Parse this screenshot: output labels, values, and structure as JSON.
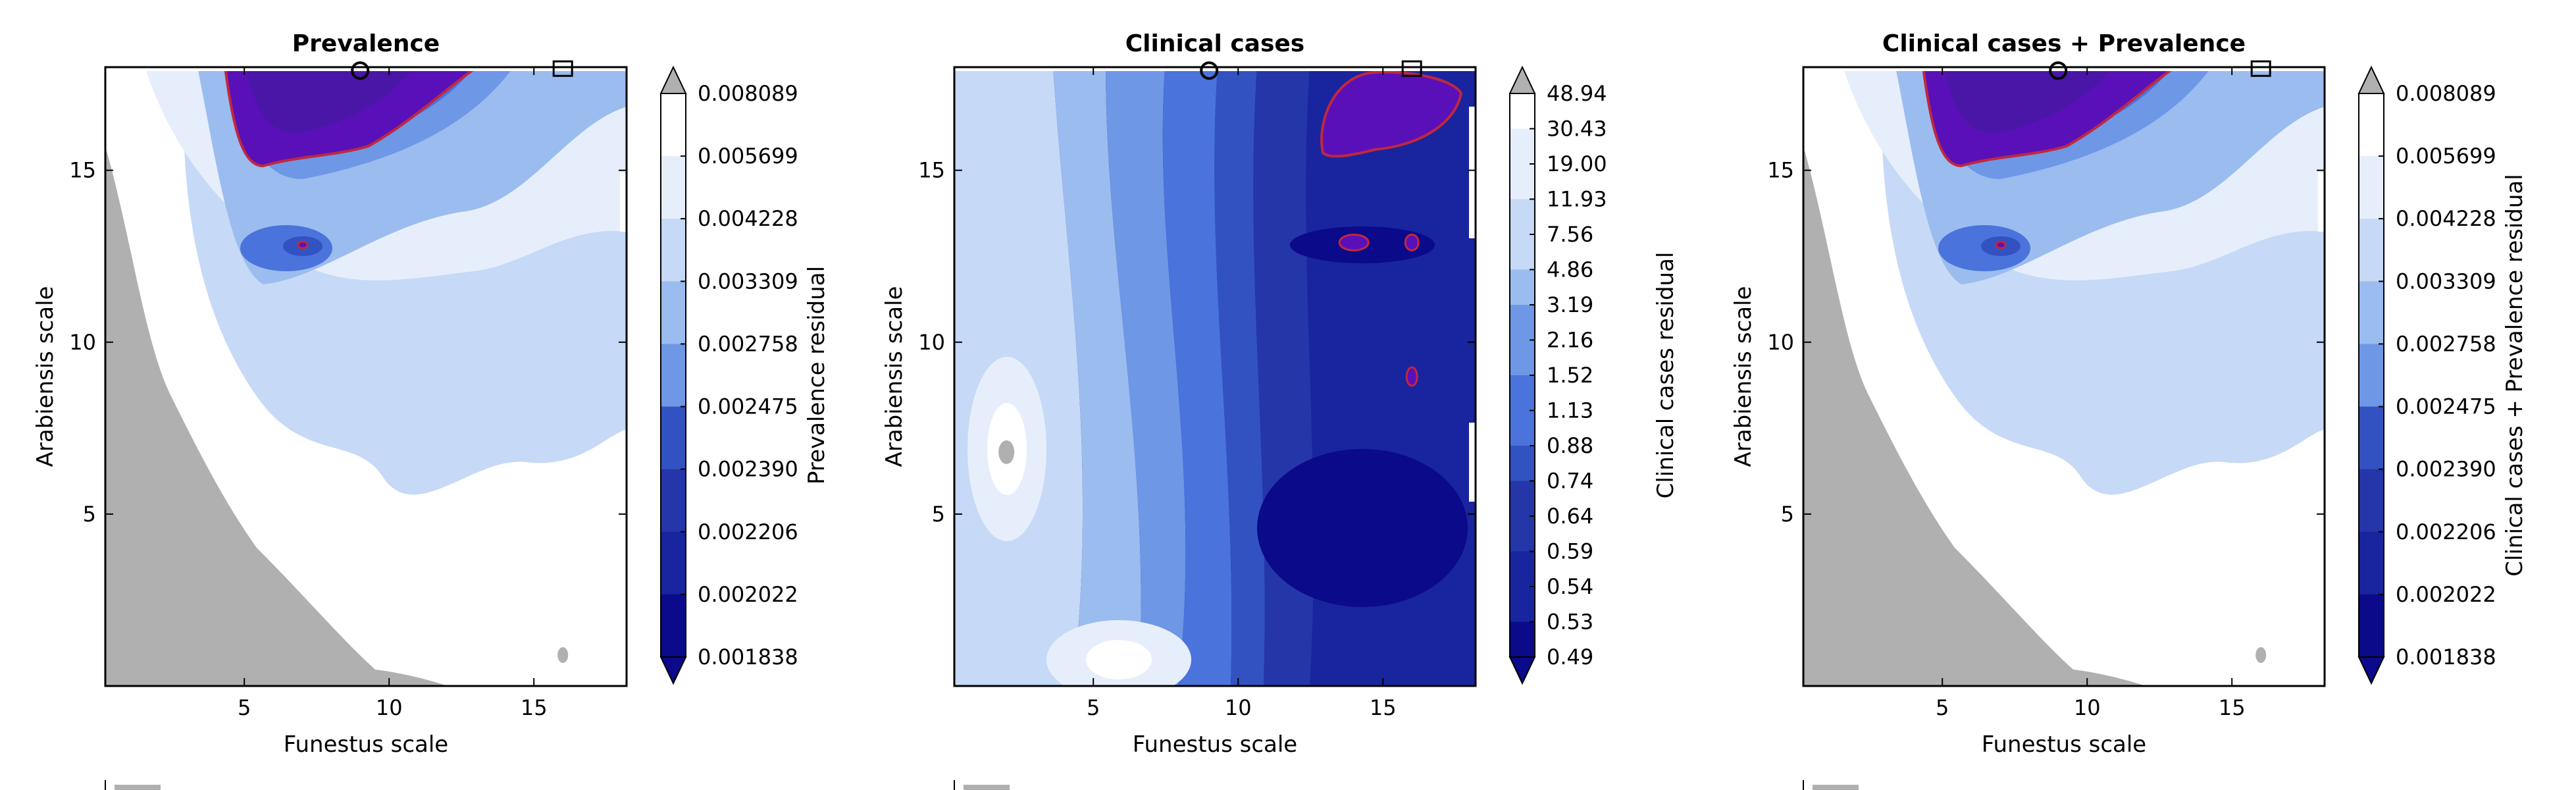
{
  "colors": {
    "background": "#ffffff",
    "frame": "#000000",
    "mask_gray": "#b0b0b0",
    "highlight_purple": "#5a10b8",
    "contour_red": "#c0273f",
    "level_colors": [
      "#0a0a8a",
      "#19249f",
      "#2436a8",
      "#3352c2",
      "#4a73db",
      "#6e97e6",
      "#9bbcef",
      "#c6d9f6",
      "#e6eefc",
      "#ffffff",
      "#b0b0b0"
    ]
  },
  "panels": [
    {
      "title": "Prevalence",
      "xlabel": "Funestus scale",
      "ylabel": "Arabiensis scale",
      "colorbar_label": "Prevalence residual",
      "colorbar_ticks": [
        "0.008089",
        "0.005699",
        "0.004228",
        "0.003309",
        "0.002758",
        "0.002475",
        "0.002390",
        "0.002206",
        "0.002022",
        "0.001838"
      ],
      "legend_text": ""
    },
    {
      "title": "Clinical cases",
      "xlabel": "Funestus scale",
      "ylabel": "Arabiensis scale",
      "colorbar_label": "Clinical cases residual",
      "colorbar_ticks": [
        "48.94",
        "30.43",
        "19.00",
        "11.93",
        "7.56",
        "4.86",
        "3.19",
        "2.16",
        "1.52",
        "1.13",
        "0.88",
        "0.74",
        "0.64",
        "0.59",
        "0.54",
        "0.53",
        "0.49"
      ],
      "legend_text": ""
    },
    {
      "title": "Clinical cases + Prevalence",
      "xlabel": "Funestus scale",
      "ylabel": "Arabiensis scale",
      "colorbar_label": "Clinical cases + Prevalence residual",
      "colorbar_ticks": [
        "0.008089",
        "0.005699",
        "0.004228",
        "0.003309",
        "0.002758",
        "0.002475",
        "0.002390",
        "0.002206",
        "0.002022",
        "0.001838"
      ],
      "legend_text": ""
    }
  ],
  "chart_data": [
    {
      "type": "heatmap",
      "title": "Prevalence",
      "xlabel": "Funestus scale",
      "ylabel": "Arabiensis scale",
      "xlim": [
        0.2,
        18.2
      ],
      "ylim": [
        0.0,
        18.0
      ],
      "xticks": [
        5,
        10,
        15
      ],
      "yticks": [
        5,
        10,
        15
      ],
      "colorbar": {
        "label": "Prevalence residual",
        "extend": "both",
        "levels": [
          0.001838,
          0.002022,
          0.002206,
          0.00239,
          0.002475,
          0.002758,
          0.003309,
          0.004228,
          0.005699,
          0.008089
        ]
      },
      "markers": [
        {
          "shape": "circle",
          "x": 9.0,
          "y": 17.9
        },
        {
          "shape": "square",
          "x": 16.0,
          "y": 17.9
        }
      ]
    },
    {
      "type": "heatmap",
      "title": "Clinical cases",
      "xlabel": "Funestus scale",
      "ylabel": "Arabiensis scale",
      "xlim": [
        0.2,
        18.2
      ],
      "ylim": [
        0.0,
        18.0
      ],
      "xticks": [
        5,
        10,
        15
      ],
      "yticks": [
        5,
        10,
        15
      ],
      "colorbar": {
        "label": "Clinical cases residual",
        "extend": "both",
        "levels": [
          0.49,
          0.53,
          0.54,
          0.59,
          0.64,
          0.74,
          0.88,
          1.13,
          1.52,
          2.16,
          3.19,
          4.86,
          7.56,
          11.93,
          19.0,
          30.43,
          48.94
        ]
      },
      "markers": [
        {
          "shape": "circle",
          "x": 9.0,
          "y": 17.9
        },
        {
          "shape": "square",
          "x": 16.0,
          "y": 17.9
        }
      ]
    },
    {
      "type": "heatmap",
      "title": "Clinical cases + Prevalence",
      "xlabel": "Funestus scale",
      "ylabel": "Arabiensis scale",
      "xlim": [
        0.2,
        18.2
      ],
      "ylim": [
        0.0,
        18.0
      ],
      "xticks": [
        5,
        10,
        15
      ],
      "yticks": [
        5,
        10,
        15
      ],
      "colorbar": {
        "label": "Clinical cases + Prevalence residual",
        "extend": "both",
        "levels": [
          0.001838,
          0.002022,
          0.002206,
          0.00239,
          0.002475,
          0.002758,
          0.003309,
          0.004228,
          0.005699,
          0.008089
        ]
      },
      "markers": [
        {
          "shape": "circle",
          "x": 9.0,
          "y": 17.9
        },
        {
          "shape": "square",
          "x": 16.0,
          "y": 17.9
        }
      ]
    }
  ]
}
